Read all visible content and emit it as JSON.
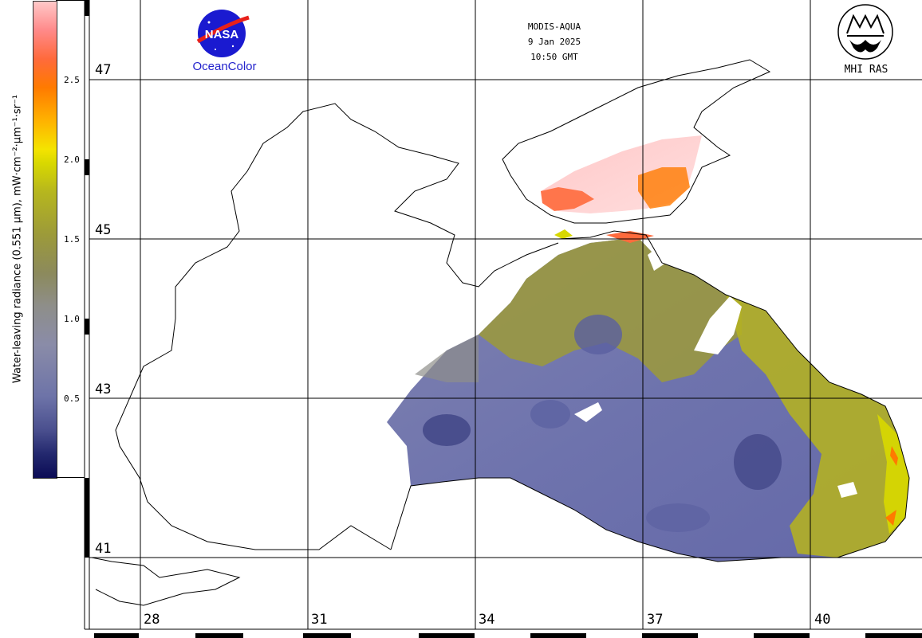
{
  "colorbar": {
    "title": "Water-leaving radiance (0.551 µm), mW·cm⁻²·µm⁻¹·sr⁻¹",
    "ticks": [
      "0.5",
      "1.0",
      "1.5",
      "2.0",
      "2.5"
    ],
    "range": [
      0,
      3.0
    ]
  },
  "header": {
    "sensor": "MODIS-AQUA",
    "date": "9 Jan 2025",
    "time": "10:50 GMT"
  },
  "logos": {
    "nasa_emblem": "NASA",
    "nasa_caption": "OceanColor",
    "mhi_caption": "MHI RAS"
  },
  "grid": {
    "latitudes": [
      "47",
      "45",
      "43",
      "41"
    ],
    "longitudes": [
      "28",
      "31",
      "34",
      "37",
      "40"
    ]
  },
  "colors": {
    "low": "#0b0b55",
    "mid": "#8a8a6a",
    "yellow": "#d8d800",
    "orange": "#ff7a00",
    "high": "#ffc8c8",
    "nasa_blue": "#1a1ad0",
    "nasa_red": "#e8201a"
  }
}
